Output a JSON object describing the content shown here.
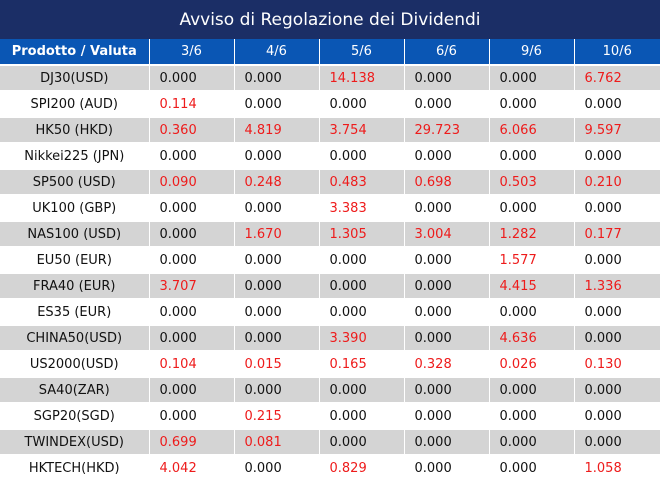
{
  "title": "Avviso di Regolazione dei Dividendi",
  "header": {
    "first_col": "Prodotto / Valuta",
    "dates": [
      "3/6",
      "4/6",
      "5/6",
      "6/6",
      "9/6",
      "10/6"
    ]
  },
  "colors": {
    "title_bg": "#1b2e66",
    "header_bg": "#0a56b4",
    "shaded_row": "#d4d4d4",
    "nonzero_value": "#ee1b1b",
    "zero_value": "#111111"
  },
  "rows": [
    {
      "product": "DJ30(USD)",
      "values": [
        "0.000",
        "0.000",
        "14.138",
        "0.000",
        "0.000",
        "6.762"
      ]
    },
    {
      "product": "SPI200 (AUD)",
      "values": [
        "0.114",
        "0.000",
        "0.000",
        "0.000",
        "0.000",
        "0.000"
      ]
    },
    {
      "product": "HK50 (HKD)",
      "values": [
        "0.360",
        "4.819",
        "3.754",
        "29.723",
        "6.066",
        "9.597"
      ]
    },
    {
      "product": "Nikkei225 (JPN)",
      "values": [
        "0.000",
        "0.000",
        "0.000",
        "0.000",
        "0.000",
        "0.000"
      ]
    },
    {
      "product": "SP500 (USD)",
      "values": [
        "0.090",
        "0.248",
        "0.483",
        "0.698",
        "0.503",
        "0.210"
      ]
    },
    {
      "product": "UK100 (GBP)",
      "values": [
        "0.000",
        "0.000",
        "3.383",
        "0.000",
        "0.000",
        "0.000"
      ]
    },
    {
      "product": "NAS100 (USD)",
      "values": [
        "0.000",
        "1.670",
        "1.305",
        "3.004",
        "1.282",
        "0.177"
      ]
    },
    {
      "product": "EU50 (EUR)",
      "values": [
        "0.000",
        "0.000",
        "0.000",
        "0.000",
        "1.577",
        "0.000"
      ]
    },
    {
      "product": "FRA40 (EUR)",
      "values": [
        "3.707",
        "0.000",
        "0.000",
        "0.000",
        "4.415",
        "1.336"
      ]
    },
    {
      "product": "ES35 (EUR)",
      "values": [
        "0.000",
        "0.000",
        "0.000",
        "0.000",
        "0.000",
        "0.000"
      ]
    },
    {
      "product": "CHINA50(USD)",
      "values": [
        "0.000",
        "0.000",
        "3.390",
        "0.000",
        "4.636",
        "0.000"
      ]
    },
    {
      "product": "US2000(USD)",
      "values": [
        "0.104",
        "0.015",
        "0.165",
        "0.328",
        "0.026",
        "0.130"
      ]
    },
    {
      "product": "SA40(ZAR)",
      "values": [
        "0.000",
        "0.000",
        "0.000",
        "0.000",
        "0.000",
        "0.000"
      ]
    },
    {
      "product": "SGP20(SGD)",
      "values": [
        "0.000",
        "0.215",
        "0.000",
        "0.000",
        "0.000",
        "0.000"
      ]
    },
    {
      "product": "TWINDEX(USD)",
      "values": [
        "0.699",
        "0.081",
        "0.000",
        "0.000",
        "0.000",
        "0.000"
      ]
    },
    {
      "product": "HKTECH(HKD)",
      "values": [
        "4.042",
        "0.000",
        "0.829",
        "0.000",
        "0.000",
        "1.058"
      ]
    }
  ]
}
